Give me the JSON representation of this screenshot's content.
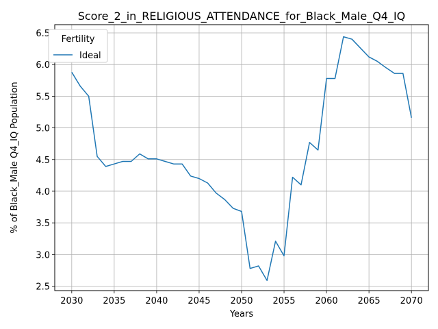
{
  "chart_data": {
    "type": "line",
    "title": "Score_2_in_RELIGIOUS_ATTENDANCE_for_Black_Male_Q4_IQ",
    "xlabel": "Years",
    "ylabel": "% of Black_Male Q4_IQ Population",
    "xlim": [
      2028.0,
      2072.0
    ],
    "ylim": [
      2.43,
      6.63
    ],
    "xticks": [
      2030,
      2035,
      2040,
      2045,
      2050,
      2055,
      2060,
      2065,
      2070
    ],
    "yticks": [
      2.5,
      3.0,
      3.5,
      4.0,
      4.5,
      5.0,
      5.5,
      6.0,
      6.5
    ],
    "ytick_labels": [
      "2.5",
      "3.0",
      "3.5",
      "4.0",
      "4.5",
      "5.0",
      "5.5",
      "6.0",
      "6.5"
    ],
    "grid": true,
    "legend": {
      "title": "Fertility",
      "placement": "top-left"
    },
    "series": [
      {
        "name": "Ideal",
        "color": "#1f77b4",
        "x": [
          2030,
          2031,
          2032,
          2033,
          2034,
          2035,
          2036,
          2037,
          2038,
          2039,
          2040,
          2041,
          2042,
          2043,
          2044,
          2045,
          2046,
          2047,
          2048,
          2049,
          2050,
          2051,
          2052,
          2053,
          2054,
          2055,
          2056,
          2057,
          2058,
          2059,
          2060,
          2061,
          2062,
          2063,
          2064,
          2065,
          2066,
          2067,
          2068,
          2069,
          2070
        ],
        "y": [
          5.88,
          5.66,
          5.5,
          4.55,
          4.39,
          4.43,
          4.47,
          4.47,
          4.59,
          4.51,
          4.51,
          4.47,
          4.43,
          4.43,
          4.24,
          4.2,
          4.13,
          3.97,
          3.87,
          3.73,
          3.68,
          2.78,
          2.82,
          2.59,
          3.21,
          2.98,
          4.22,
          4.1,
          4.77,
          4.65,
          5.78,
          5.78,
          6.44,
          6.4,
          6.26,
          6.12,
          6.05,
          5.95,
          5.86,
          5.86,
          5.16
        ]
      }
    ]
  }
}
